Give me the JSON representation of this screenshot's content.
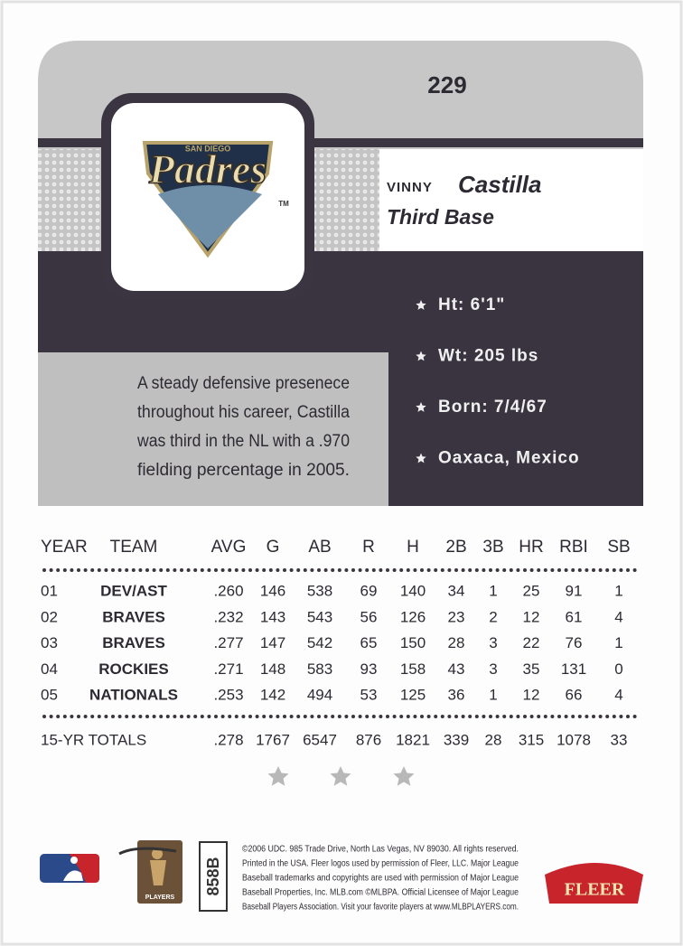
{
  "card_number": "229",
  "logo": {
    "city": "SAN DIEGO",
    "team": "Padres",
    "tm": "TM"
  },
  "player": {
    "first_name": "VINNY",
    "last_name": "Castilla",
    "position": "Third Base"
  },
  "bio": [
    "Ht: 6'1\"",
    "Wt: 205 lbs",
    "Born: 7/4/67",
    "Oaxaca, Mexico"
  ],
  "blurb": [
    "A steady defensive presenece",
    "throughout his career, Castilla",
    "was third in the NL with a .970",
    "fielding percentage in 2005."
  ],
  "stats": {
    "header": [
      "YEAR",
      "TEAM",
      "AVG",
      "G",
      "AB",
      "R",
      "H",
      "2B",
      "3B",
      "HR",
      "RBI",
      "SB"
    ],
    "rows": [
      [
        "01",
        "DEV/AST",
        ".260",
        "146",
        "538",
        "69",
        "140",
        "34",
        "1",
        "25",
        "91",
        "1"
      ],
      [
        "02",
        "BRAVES",
        ".232",
        "143",
        "543",
        "56",
        "126",
        "23",
        "2",
        "12",
        "61",
        "4"
      ],
      [
        "03",
        "BRAVES",
        ".277",
        "147",
        "542",
        "65",
        "150",
        "28",
        "3",
        "22",
        "76",
        "1"
      ],
      [
        "04",
        "ROCKIES",
        ".271",
        "148",
        "583",
        "93",
        "158",
        "43",
        "3",
        "35",
        "131",
        "0"
      ],
      [
        "05",
        "NATIONALS",
        ".253",
        "142",
        "494",
        "53",
        "125",
        "36",
        "1",
        "12",
        "66",
        "4"
      ]
    ],
    "totals": [
      "15-YR TOTALS",
      ".278",
      "1767",
      "6547",
      "876",
      "1821",
      "339",
      "28",
      "315",
      "1078",
      "33"
    ]
  },
  "footer": {
    "players_logo": "PLAYERS",
    "code": "858B",
    "legal": [
      "©2006 UDC. 985 Trade Drive, North Las Vegas, NV 89030. All rights reserved.",
      "Printed in the USA. Fleer logos used by permission of Fleer, LLC. Major League",
      "Baseball trademarks and copyrights are used with permission of Major League",
      "Baseball Properties, Inc. MLB.com ©MLBPA. Official Licensee of Major League",
      "Baseball Players Association. Visit your favorite players at www.MLBPLAYERS.com."
    ],
    "brand": "FLEER"
  }
}
